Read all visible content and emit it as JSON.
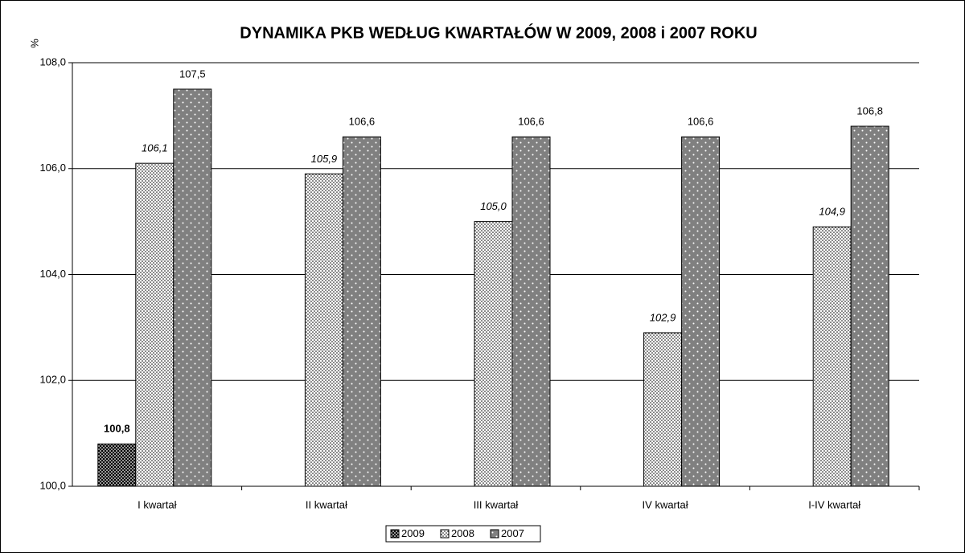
{
  "chart_data": {
    "type": "bar",
    "title": "DYNAMIKA PKB WEDŁUG KWARTAŁÓW W 2009, 2008 i 2007 ROKU",
    "y_label": "%",
    "categories": [
      "I kwartał",
      "II kwartał",
      "III kwartał",
      "IV kwartał",
      "I-IV kwartał"
    ],
    "series": [
      {
        "name": "2009",
        "color": "#000000",
        "values": [
          100.8,
          null,
          null,
          null,
          null
        ],
        "value_labels": [
          "100,8",
          null,
          null,
          null,
          null
        ]
      },
      {
        "name": "2008",
        "color": "#ffffff",
        "values": [
          106.1,
          105.9,
          105.0,
          102.9,
          104.9
        ],
        "value_labels": [
          "106,1",
          "105,9",
          "105,0",
          "102,9",
          "104,9"
        ]
      },
      {
        "name": "2007",
        "color": "#808080",
        "values": [
          107.5,
          106.6,
          106.6,
          106.6,
          106.8
        ],
        "value_labels": [
          "107,5",
          "106,6",
          "106,6",
          "106,6",
          "106,8"
        ]
      }
    ],
    "ylim": [
      100,
      108
    ],
    "yticks": [
      {
        "value": 100,
        "label": "100,0"
      },
      {
        "value": 102,
        "label": "102,0"
      },
      {
        "value": 104,
        "label": "104,0"
      },
      {
        "value": 106,
        "label": "106,0"
      },
      {
        "value": 108,
        "label": "108,0"
      }
    ],
    "grid": true,
    "legend": "bottom"
  }
}
